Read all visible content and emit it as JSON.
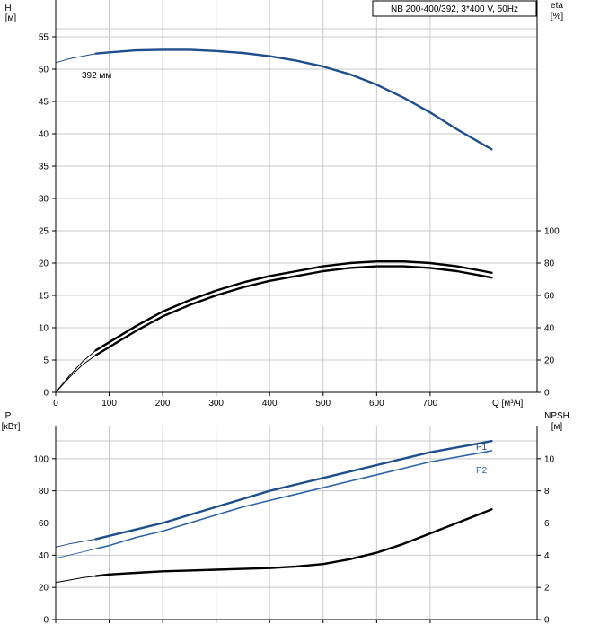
{
  "chart_data": [
    {
      "type": "line",
      "title": "NB 200-400/392, 3*400 V, 50Hz",
      "ylabel_left": "H",
      "ylabel_left_unit": "[м]",
      "ylabel_right": "eta",
      "ylabel_right_unit": "[%]",
      "xlabel": "Q [м³/ч]",
      "xlim": [
        0,
        900
      ],
      "x_ticks": [
        0,
        100,
        200,
        300,
        400,
        500,
        600,
        700
      ],
      "ylim_left": [
        0,
        60
      ],
      "y_left_ticks": [
        0,
        5,
        10,
        15,
        20,
        25,
        30,
        35,
        40,
        45,
        50,
        55
      ],
      "ylim_right": [
        0,
        240
      ],
      "y_right_ticks": [
        0,
        20,
        40,
        60,
        80,
        100
      ],
      "grid": true,
      "series": [
        {
          "name": "392 мм",
          "axis": "left",
          "color": "#1f4e8c",
          "x": [
            75,
            100,
            150,
            200,
            250,
            300,
            350,
            400,
            450,
            500,
            550,
            600,
            650,
            700,
            750,
            800,
            815
          ],
          "y": [
            52.4,
            52.6,
            52.9,
            53.0,
            53.0,
            52.8,
            52.5,
            52.0,
            51.3,
            50.4,
            49.2,
            47.6,
            45.6,
            43.3,
            40.7,
            38.3,
            37.6
          ],
          "extension": {
            "x": [
              0,
              25,
              50,
              75
            ],
            "y": [
              51.0,
              51.6,
              52.0,
              52.4
            ]
          }
        },
        {
          "name": "",
          "axis": "right",
          "color": "#000000",
          "x": [
            75,
            100,
            150,
            200,
            250,
            300,
            350,
            400,
            450,
            500,
            550,
            600,
            650,
            700,
            750,
            800,
            815
          ],
          "y": [
            26,
            31,
            41,
            50,
            57,
            63,
            68,
            72,
            75,
            78,
            80,
            81,
            81,
            80,
            78,
            75,
            74
          ],
          "extension": {
            "x": [
              0,
              25,
              50,
              75
            ],
            "y": [
              0,
              10,
              19,
              26
            ]
          }
        },
        {
          "name": "",
          "axis": "right",
          "color": "#000000",
          "x": [
            75,
            100,
            150,
            200,
            250,
            300,
            350,
            400,
            450,
            500,
            550,
            600,
            650,
            700,
            750,
            800,
            815
          ],
          "y": [
            23,
            28,
            38,
            47,
            54,
            60,
            65,
            69,
            72,
            75,
            77,
            78,
            78,
            77,
            75,
            72,
            71
          ],
          "extension": {
            "x": [
              0,
              25,
              50,
              75
            ],
            "y": [
              0,
              9,
              17,
              23
            ]
          }
        }
      ]
    },
    {
      "type": "line",
      "ylabel_left": "P",
      "ylabel_left_unit": "[кВт]",
      "ylabel_right": "NPSH",
      "ylabel_right_unit": "[м]",
      "xlim": [
        0,
        900
      ],
      "ylim_left": [
        0,
        120
      ],
      "y_left_ticks": [
        0,
        20,
        40,
        60,
        80,
        100
      ],
      "ylim_right": [
        0,
        12
      ],
      "y_right_ticks": [
        0,
        2,
        4,
        6,
        8,
        10
      ],
      "grid": true,
      "series": [
        {
          "name": "P1",
          "axis": "left",
          "color": "#1f4e8c",
          "x": [
            75,
            100,
            150,
            200,
            250,
            300,
            350,
            400,
            450,
            500,
            550,
            600,
            650,
            700,
            750,
            800,
            815
          ],
          "y": [
            50,
            52,
            56,
            60,
            65,
            70,
            75,
            80,
            84,
            88,
            92,
            96,
            100,
            104,
            107,
            110,
            111
          ],
          "extension": {
            "x": [
              0,
              25,
              50,
              75
            ],
            "y": [
              45,
              47,
              48.5,
              50
            ]
          }
        },
        {
          "name": "P2",
          "axis": "left",
          "color": "#2b63a8",
          "x": [
            75,
            100,
            150,
            200,
            250,
            300,
            350,
            400,
            450,
            500,
            550,
            600,
            650,
            700,
            750,
            800,
            815
          ],
          "y": [
            44,
            46,
            51,
            55,
            60,
            65,
            70,
            74,
            78,
            82,
            86,
            90,
            94,
            98,
            101,
            104,
            105
          ],
          "extension": {
            "x": [
              0,
              25,
              50,
              75
            ],
            "y": [
              38,
              40,
              42,
              44
            ]
          }
        },
        {
          "name": "",
          "axis": "right",
          "color": "#000000",
          "x": [
            75,
            100,
            150,
            200,
            250,
            300,
            350,
            400,
            450,
            500,
            550,
            600,
            650,
            700,
            750,
            800,
            815
          ],
          "y": [
            2.7,
            2.8,
            2.9,
            3.0,
            3.05,
            3.1,
            3.15,
            3.2,
            3.3,
            3.45,
            3.75,
            4.15,
            4.7,
            5.35,
            6.0,
            6.65,
            6.85
          ],
          "extension": {
            "x": [
              0,
              25,
              50,
              75
            ],
            "y": [
              2.3,
              2.45,
              2.6,
              2.7
            ]
          }
        }
      ]
    }
  ]
}
